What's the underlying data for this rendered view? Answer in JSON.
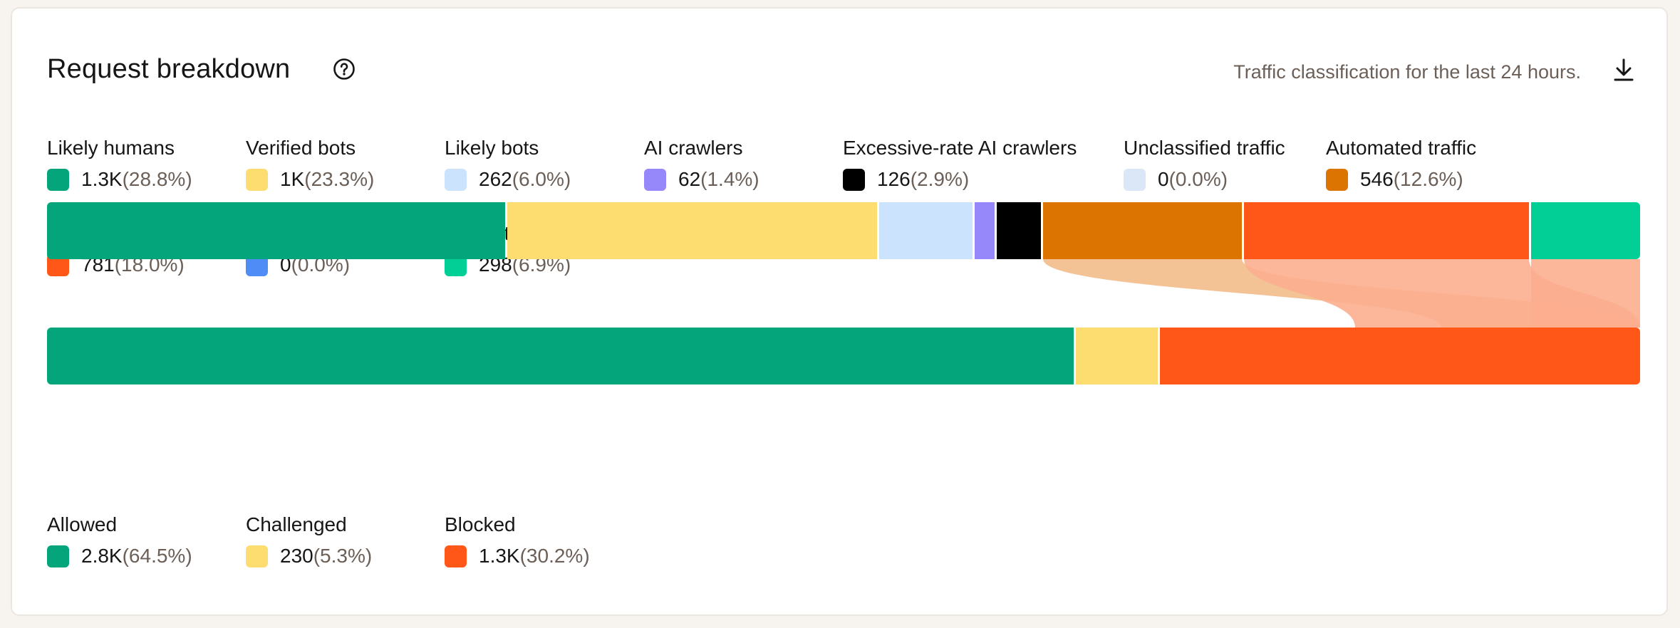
{
  "header": {
    "title": "Request breakdown",
    "subtitle": "Traffic classification for the last 24 hours.",
    "help_icon": "question-circle-icon",
    "download_icon": "download-icon"
  },
  "categories": [
    {
      "label": "Likely humans",
      "count": "1.3K",
      "pct": "(28.8%)",
      "color": "#04a57a"
    },
    {
      "label": "Verified bots",
      "count": "1K",
      "pct": "(23.3%)",
      "color": "#fddd70"
    },
    {
      "label": "Likely bots",
      "count": "262",
      "pct": "(6.0%)",
      "color": "#cbe3fd"
    },
    {
      "label": "AI crawlers",
      "count": "62",
      "pct": "(1.4%)",
      "color": "#9687fb"
    },
    {
      "label": "Excessive-rate AI crawlers",
      "count": "126",
      "pct": "(2.9%)",
      "color": "#000000"
    },
    {
      "label": "Unclassified traffic",
      "count": "0",
      "pct": "(0.0%)",
      "color": "#dbe7f6"
    },
    {
      "label": "Automated traffic",
      "count": "546",
      "pct": "(12.6%)",
      "color": "#db7400"
    },
    {
      "label": "Malicious traffic",
      "count": "781",
      "pct": "(18.0%)",
      "color": "#ff5717"
    },
    {
      "label": "Custom rules",
      "count": "0",
      "pct": "(0.0%)",
      "color": "#4f8cf6"
    },
    {
      "label": "WP automations",
      "count": "298",
      "pct": "(6.9%)",
      "color": "#02cf95"
    }
  ],
  "outcomes": [
    {
      "label": "Allowed",
      "count": "2.8K",
      "pct": "(64.5%)",
      "color": "#04a57a"
    },
    {
      "label": "Challenged",
      "count": "230",
      "pct": "(5.3%)",
      "color": "#fddd70"
    },
    {
      "label": "Blocked",
      "count": "1.3K",
      "pct": "(30.2%)",
      "color": "#ff5717"
    }
  ],
  "category_shares": [
    28.8,
    23.3,
    6.0,
    1.4,
    2.9,
    0.0,
    12.6,
    18.0,
    0.0,
    6.9
  ],
  "outcome_shares": [
    64.5,
    5.3,
    30.2
  ],
  "flows": [
    {
      "from": 6,
      "to": 2,
      "color": "#f2bb8a"
    },
    {
      "from": 7,
      "to": 2,
      "color": "#fcae8f"
    },
    {
      "from": 9,
      "to": 2,
      "color": "#fcae8f"
    }
  ]
}
